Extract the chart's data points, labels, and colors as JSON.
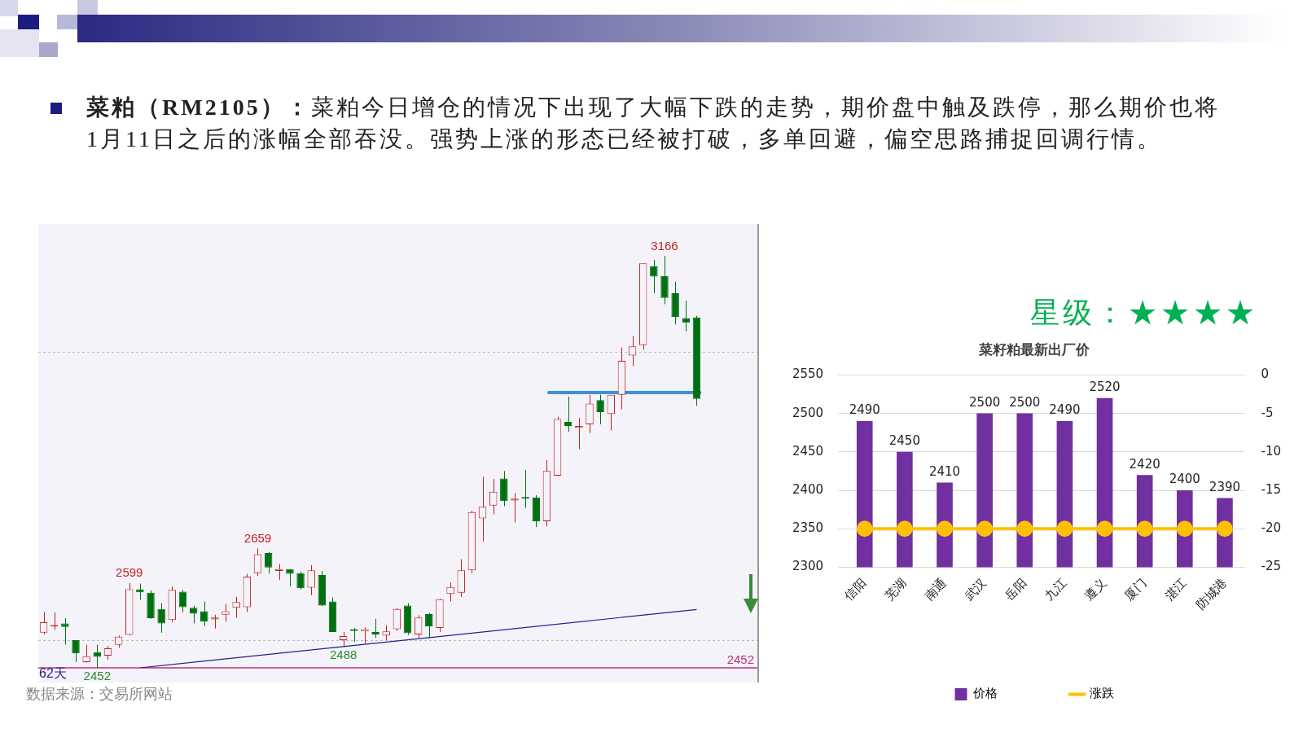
{
  "chart_data": [
    {
      "type": "candlestick",
      "title": "菜粕（RM2105）：",
      "subtitle": "菜粕今日增仓的情况下出现了大幅下跌的走势，期价盘中触及跌停，那么期价也将1月11日之后的涨幅全部吞没。强势上涨的形态已经被打破，多单回避，偏空思路捕捉回调行情。",
      "categories": [
        null,
        null,
        null,
        null,
        null,
        null,
        null,
        null,
        null,
        null,
        null,
        null,
        null,
        null,
        null,
        null,
        null,
        null,
        null,
        null,
        null,
        null,
        null,
        null,
        null,
        null,
        null,
        null,
        null,
        null,
        null,
        null,
        null,
        null,
        null,
        null,
        null,
        null,
        null,
        null,
        null,
        null,
        null,
        null,
        null,
        null,
        null,
        null,
        null,
        null,
        null,
        null,
        null,
        null,
        null,
        null,
        null,
        null,
        null,
        null,
        null,
        null
      ],
      "ohlc": [
        [
          2513,
          2549,
          2510,
          2531
        ],
        [
          2524,
          2548,
          2518,
          2526
        ],
        [
          2529,
          2538,
          2492,
          2523
        ],
        [
          2500,
          2500,
          2462,
          2477
        ],
        [
          2462,
          2492,
          2461,
          2472
        ],
        [
          2479,
          2492,
          2452,
          2471
        ],
        [
          2473,
          2490,
          2466,
          2486
        ],
        [
          2492,
          2508,
          2487,
          2506
        ],
        [
          2509,
          2599,
          2508,
          2588
        ],
        [
          2588,
          2598,
          2570,
          2583
        ],
        [
          2582,
          2586,
          2537,
          2538
        ],
        [
          2554,
          2564,
          2513,
          2529
        ],
        [
          2535,
          2593,
          2531,
          2587
        ],
        [
          2584,
          2587,
          2548,
          2557
        ],
        [
          2556,
          2560,
          2529,
          2546
        ],
        [
          2550,
          2567,
          2524,
          2532
        ],
        [
          2536,
          2544,
          2520,
          2539
        ],
        [
          2544,
          2563,
          2532,
          2550
        ],
        [
          2556,
          2575,
          2539,
          2566
        ],
        [
          2557,
          2615,
          2549,
          2610
        ],
        [
          2616,
          2659,
          2611,
          2649
        ],
        [
          2651,
          2653,
          2615,
          2626
        ],
        [
          2620,
          2632,
          2604,
          2623
        ],
        [
          2623,
          2623,
          2593,
          2615
        ],
        [
          2616,
          2619,
          2588,
          2590
        ],
        [
          2591,
          2630,
          2578,
          2621
        ],
        [
          2613,
          2620,
          2559,
          2560
        ],
        [
          2567,
          2574,
          2514,
          2514
        ],
        [
          2500,
          2514,
          2488,
          2507
        ],
        [
          2519,
          2521,
          2497,
          2516
        ],
        [
          2515,
          2522,
          2494,
          2519
        ],
        [
          2514,
          2537,
          2504,
          2510
        ],
        [
          2508,
          2526,
          2500,
          2515
        ],
        [
          2519,
          2556,
          2516,
          2554
        ],
        [
          2560,
          2564,
          2509,
          2512
        ],
        [
          2510,
          2543,
          2504,
          2539
        ],
        [
          2545,
          2547,
          2504,
          2524
        ],
        [
          2521,
          2572,
          2514,
          2571
        ],
        [
          2580,
          2600,
          2567,
          2592
        ],
        [
          2582,
          2640,
          2575,
          2621
        ],
        [
          2621,
          2724,
          2616,
          2722
        ],
        [
          2711,
          2783,
          2671,
          2731
        ],
        [
          2733,
          2779,
          2718,
          2757
        ],
        [
          2780,
          2793,
          2732,
          2741
        ],
        [
          2742,
          2755,
          2704,
          2745
        ],
        [
          2748,
          2795,
          2729,
          2745
        ],
        [
          2747,
          2751,
          2696,
          2706
        ],
        [
          2706,
          2812,
          2697,
          2793
        ],
        [
          2785,
          2887,
          2784,
          2883
        ],
        [
          2878,
          2922,
          2861,
          2871
        ],
        [
          2868,
          2885,
          2831,
          2871
        ],
        [
          2874,
          2925,
          2859,
          2910
        ],
        [
          2916,
          2925,
          2874,
          2895
        ],
        [
          2892,
          2925,
          2863,
          2925
        ],
        [
          2925,
          3007,
          2900,
          2984
        ],
        [
          2993,
          3027,
          2975,
          3009
        ],
        [
          3011,
          3153,
          3003,
          3153
        ],
        [
          3148,
          3159,
          3101,
          3130
        ],
        [
          3131,
          3166,
          3082,
          3093
        ],
        [
          3101,
          3121,
          3047,
          3060
        ],
        [
          3058,
          3088,
          3035,
          3050
        ],
        [
          3059,
          3062,
          2906,
          2918
        ]
      ],
      "series": [
        {
          "type": "line",
          "color": "#1f1f8f",
          "values": [
            null,
            null,
            null,
            null,
            null,
            null,
            null,
            null,
            null,
            2452,
            null,
            null,
            null,
            null,
            null,
            null,
            null,
            null,
            null,
            null,
            null,
            null,
            null,
            null,
            null,
            null,
            null,
            null,
            null,
            null,
            null,
            null,
            null,
            null,
            null,
            null,
            null,
            null,
            null,
            null,
            null,
            null,
            null,
            null,
            null,
            null,
            null,
            null,
            null,
            null,
            null,
            null,
            null,
            null,
            null,
            null,
            null,
            null,
            null,
            null,
            null,
            2553
          ]
        }
      ],
      "yticks": [
        {
          "value": 2500,
          "label": null
        },
        {
          "value": 3000,
          "label": null
        }
      ],
      "grid": "y",
      "legend": false,
      "ref_lines": [
        {
          "axis": "y",
          "value": 2452,
          "label": "2452",
          "color": "#c0307a"
        },
        {
          "axis": "y",
          "value": 2929,
          "label": null,
          "color": "#3a90dc"
        }
      ],
      "annotations": [
        "62天",
        {
          "text": "3166",
          "y": 3166
        },
        {
          "text": "2659",
          "y": 2659
        },
        {
          "text": "2599",
          "y": 2599
        },
        {
          "text": "2488",
          "y": 2488
        },
        {
          "text": "2452",
          "y": 2452
        },
        "数据来源：交易所网站"
      ]
    },
    {
      "type": "bar",
      "title": "菜籽粕最新出厂价",
      "categories": [
        "信阳",
        "芜湖",
        "南通",
        "武汉",
        "岳阳",
        "九江",
        "遵义",
        "厦门",
        "湛江",
        "防城港"
      ],
      "series": [
        {
          "name": "价格",
          "color": "#7030a0",
          "values": [
            2490,
            2450,
            2410,
            2500,
            2500,
            2490,
            2520,
            2420,
            2400,
            2390
          ],
          "value_labels": [
            "2490",
            "2450",
            "2410",
            "2500",
            "2500",
            "2490",
            "2520",
            "2420",
            "2400",
            "2390"
          ]
        },
        {
          "name": "涨跌",
          "type": "line",
          "axis": "y2",
          "color": "#ffc000",
          "values": [
            -20,
            -20,
            -20,
            -20,
            -20,
            -20,
            -20,
            -20,
            -20,
            -20
          ]
        }
      ],
      "ylim": [
        2300,
        2550
      ],
      "yticks": [
        2300,
        2350,
        2400,
        2450,
        2500,
        2550
      ],
      "y2lim": [
        -25,
        0
      ],
      "y2ticks": [
        -25,
        -20,
        -15,
        -10,
        -5,
        0
      ],
      "grid": "y",
      "legend": "bottom",
      "marker": "circle",
      "annotations": [
        "星级：★★★★"
      ]
    }
  ]
}
